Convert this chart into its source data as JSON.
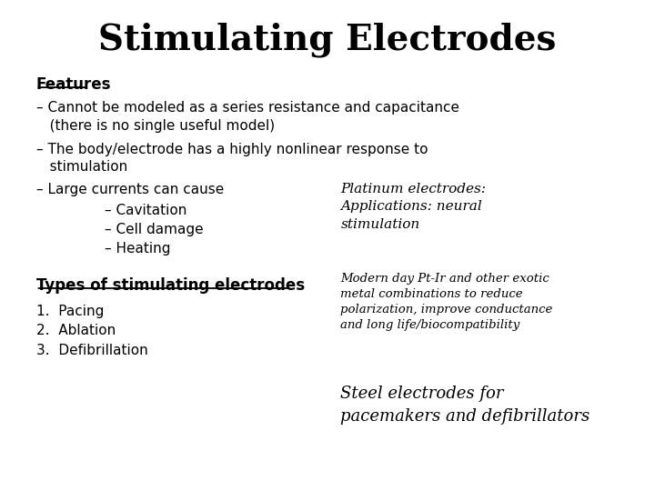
{
  "title": "Stimulating Electrodes",
  "title_fontsize": 28,
  "title_fontweight": "bold",
  "title_fontfamily": "serif",
  "bg_color": "#ffffff",
  "text_color": "#000000",
  "figsize": [
    7.2,
    5.4
  ],
  "dpi": 100,
  "features_label": "Features",
  "features_fontsize": 12,
  "bullet1": "– Cannot be modeled as a series resistance and capacitance\n   (there is no single useful model)",
  "bullet2": "– The body/electrode has a highly nonlinear response to\n   stimulation",
  "bullet3": "– Large currents can cause",
  "subbullet1": "– Cavitation",
  "subbullet2": "– Cell damage",
  "subbullet3": "– Heating",
  "types_label": "Types of stimulating electrodes",
  "type1": "1.  Pacing",
  "type2": "2.  Ablation",
  "type3": "3.  Defibrillation",
  "platinum_text": "Platinum electrodes:\nApplications: neural\nstimulation",
  "ptir_text": "Modern day Pt-Ir and other exotic\nmetal combinations to reduce\npolarization, improve conductance\nand long life/biocompatibility",
  "steel_text": "Steel electrodes for\npacemakers and defibrillators",
  "main_fontsize": 11,
  "italic_fontsize_large": 11,
  "italic_fontsize_small": 9.5,
  "italic_fontsize_steel": 13
}
